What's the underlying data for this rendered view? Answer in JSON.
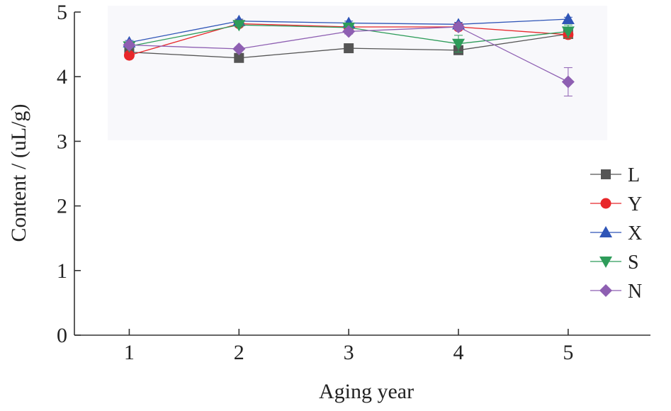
{
  "chart_data": {
    "type": "line",
    "title": "",
    "xlabel": "Aging year",
    "ylabel": "Content / (uL/g)",
    "x": [
      1,
      2,
      3,
      4,
      5
    ],
    "xlim": [
      0.5,
      5.75
    ],
    "ylim": [
      0,
      5
    ],
    "y_ticks": [
      0,
      1,
      2,
      3,
      4,
      5
    ],
    "x_ticks": [
      1,
      2,
      3,
      4,
      5
    ],
    "grid": false,
    "legend_position": "right",
    "series": [
      {
        "name": "L",
        "marker": "square",
        "color": "#555555",
        "values": [
          4.38,
          4.29,
          4.44,
          4.41,
          4.66
        ],
        "errors": [
          0.03,
          0.03,
          0.03,
          0.04,
          0.05
        ]
      },
      {
        "name": "Y",
        "marker": "circle",
        "color": "#e8272a",
        "values": [
          4.33,
          4.82,
          4.77,
          4.77,
          4.65
        ],
        "errors": [
          0.04,
          0.03,
          0.03,
          0.03,
          0.05
        ]
      },
      {
        "name": "X",
        "marker": "triangle-up",
        "color": "#2f55b7",
        "values": [
          4.53,
          4.86,
          4.83,
          4.81,
          4.89
        ],
        "errors": [
          0.03,
          0.03,
          0.03,
          0.03,
          0.03
        ]
      },
      {
        "name": "S",
        "marker": "triangle-down",
        "color": "#2e9c5a",
        "values": [
          4.47,
          4.8,
          4.76,
          4.51,
          4.7
        ],
        "errors": [
          0.03,
          0.03,
          0.03,
          0.13,
          0.1
        ]
      },
      {
        "name": "N",
        "marker": "diamond",
        "color": "#8e5fb2",
        "values": [
          4.49,
          4.43,
          4.7,
          4.77,
          3.92
        ],
        "errors": [
          0.03,
          0.03,
          0.04,
          0.04,
          0.22
        ]
      }
    ]
  }
}
